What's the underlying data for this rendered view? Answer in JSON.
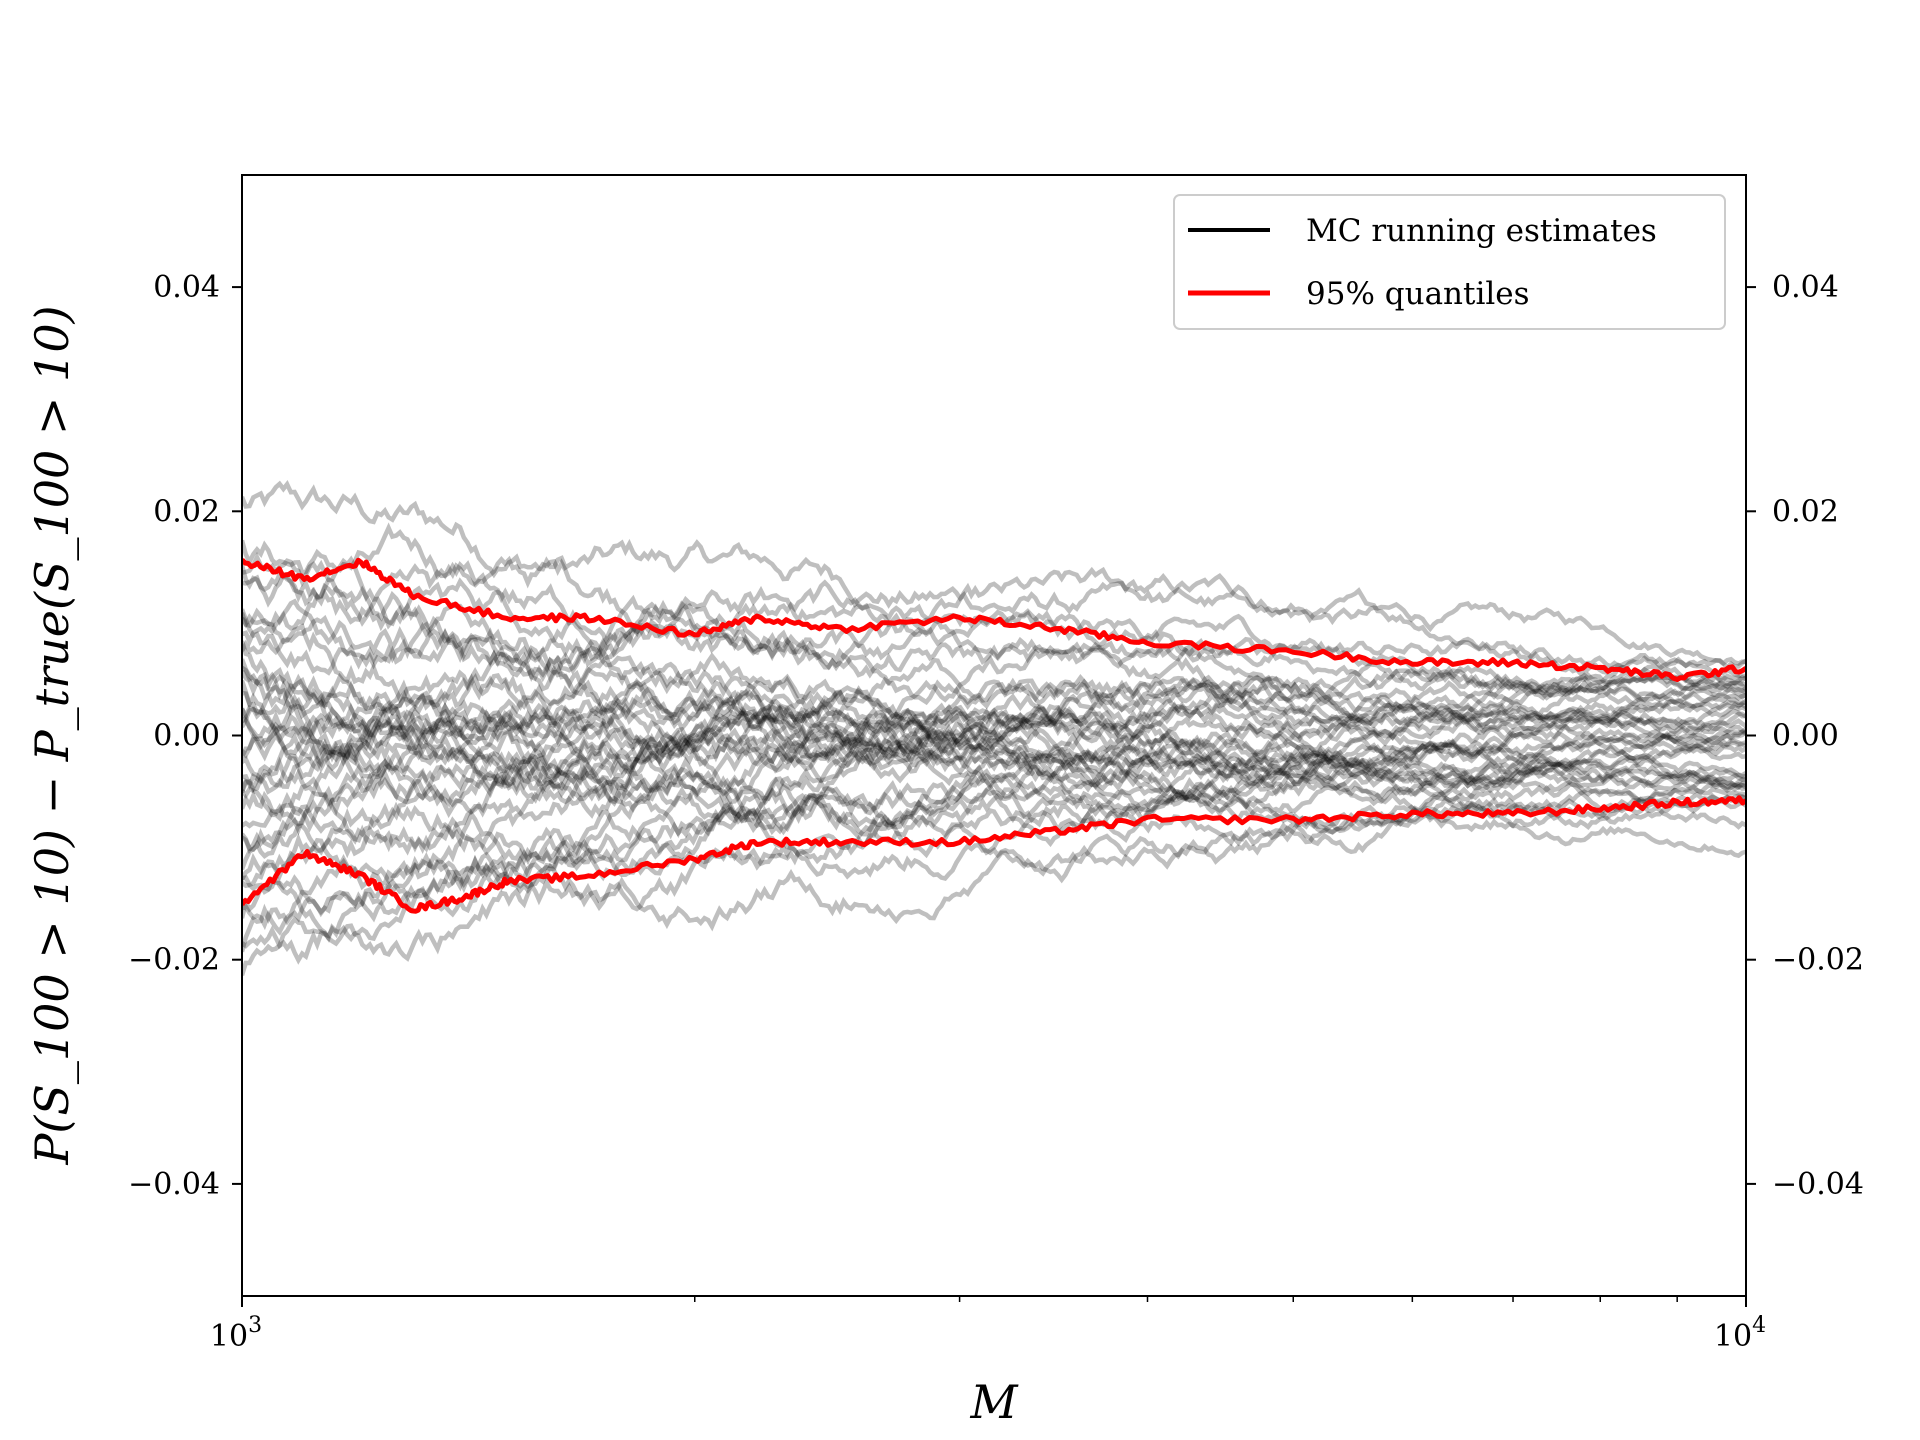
{
  "chart_data": {
    "type": "line",
    "title": "",
    "xlabel": "M",
    "ylabel": "P(S_100 > 10) − P_true(S_100 > 10)",
    "xscale": "log",
    "xlim": [
      1000,
      10000
    ],
    "ylim": [
      -0.05,
      0.05
    ],
    "x_ticks": [
      {
        "value": 1000,
        "base": "10",
        "exp": "3"
      },
      {
        "value": 10000,
        "base": "10",
        "exp": "4"
      }
    ],
    "y_ticks": [
      {
        "value": -0.04,
        "label": "−0.04"
      },
      {
        "value": -0.02,
        "label": "−0.02"
      },
      {
        "value": 0.0,
        "label": "0.00"
      },
      {
        "value": 0.02,
        "label": "0.02"
      },
      {
        "value": 0.04,
        "label": "0.04"
      }
    ],
    "grid": false,
    "y_ticks_both_sides": true,
    "legend": {
      "placement": "upper right",
      "entries": [
        {
          "label": "MC running estimates",
          "color": "#000000"
        },
        {
          "label": "95% quantiles",
          "color": "#ff0000"
        }
      ]
    },
    "colors": {
      "mc": "#000000",
      "mc_opacity": 0.25,
      "quantile": "#ff0000"
    },
    "mc_runs": {
      "count": 40,
      "x": [
        1000,
        1250,
        1500,
        2000,
        2500,
        3000,
        4000,
        5000,
        6000,
        7000,
        8500,
        10000
      ],
      "start_values": [
        0.021,
        0.018,
        0.016,
        0.015,
        0.013,
        0.012,
        0.011,
        0.01,
        0.009,
        0.008,
        0.007,
        0.006,
        0.005,
        0.004,
        0.003,
        0.002,
        0.001,
        0.0,
        -0.001,
        -0.002,
        -0.003,
        -0.004,
        -0.005,
        -0.006,
        -0.007,
        -0.008,
        -0.009,
        -0.01,
        -0.011,
        -0.012,
        -0.013,
        -0.014,
        -0.015,
        -0.016,
        -0.018,
        -0.02,
        -0.021,
        0.008,
        -0.002,
        0.004
      ],
      "end_values": [
        0.008,
        0.007,
        0.006,
        0.005,
        0.004,
        0.003,
        0.002,
        0.001,
        0.0,
        -0.001,
        -0.002,
        -0.003,
        -0.004,
        -0.005,
        -0.006,
        -0.007,
        -0.008,
        0.003,
        0.001,
        -0.001,
        0.002,
        0.004,
        -0.002,
        0.0,
        0.005,
        -0.004,
        0.001,
        -0.003,
        0.006,
        -0.006,
        0.002,
        -0.005,
        0.003,
        -0.001,
        -0.007,
        0.0,
        0.002,
        -0.002,
        0.004,
        -0.003
      ]
    },
    "series": [
      {
        "name": "95% quantiles",
        "kind": "upper",
        "x": [
          1000,
          1100,
          1200,
          1300,
          1500,
          1700,
          2000,
          2200,
          2500,
          3000,
          3500,
          4000,
          5000,
          6000,
          7000,
          8000,
          9000,
          10000
        ],
        "y": [
          0.0155,
          0.014,
          0.0155,
          0.0125,
          0.0105,
          0.0105,
          0.009,
          0.0105,
          0.0095,
          0.0105,
          0.0095,
          0.0083,
          0.0075,
          0.0065,
          0.0065,
          0.006,
          0.0052,
          0.006
        ]
      },
      {
        "name": "95% quantiles",
        "kind": "lower",
        "x": [
          1000,
          1100,
          1200,
          1300,
          1400,
          1500,
          1700,
          2000,
          2200,
          2500,
          3000,
          3500,
          4000,
          5000,
          6000,
          7000,
          8000,
          9000,
          10000
        ],
        "y": [
          -0.015,
          -0.0105,
          -0.0125,
          -0.0155,
          -0.0145,
          -0.013,
          -0.0125,
          -0.011,
          -0.0095,
          -0.0095,
          -0.0095,
          -0.0085,
          -0.0075,
          -0.0075,
          -0.007,
          -0.007,
          -0.0065,
          -0.006,
          -0.0058
        ]
      }
    ]
  }
}
